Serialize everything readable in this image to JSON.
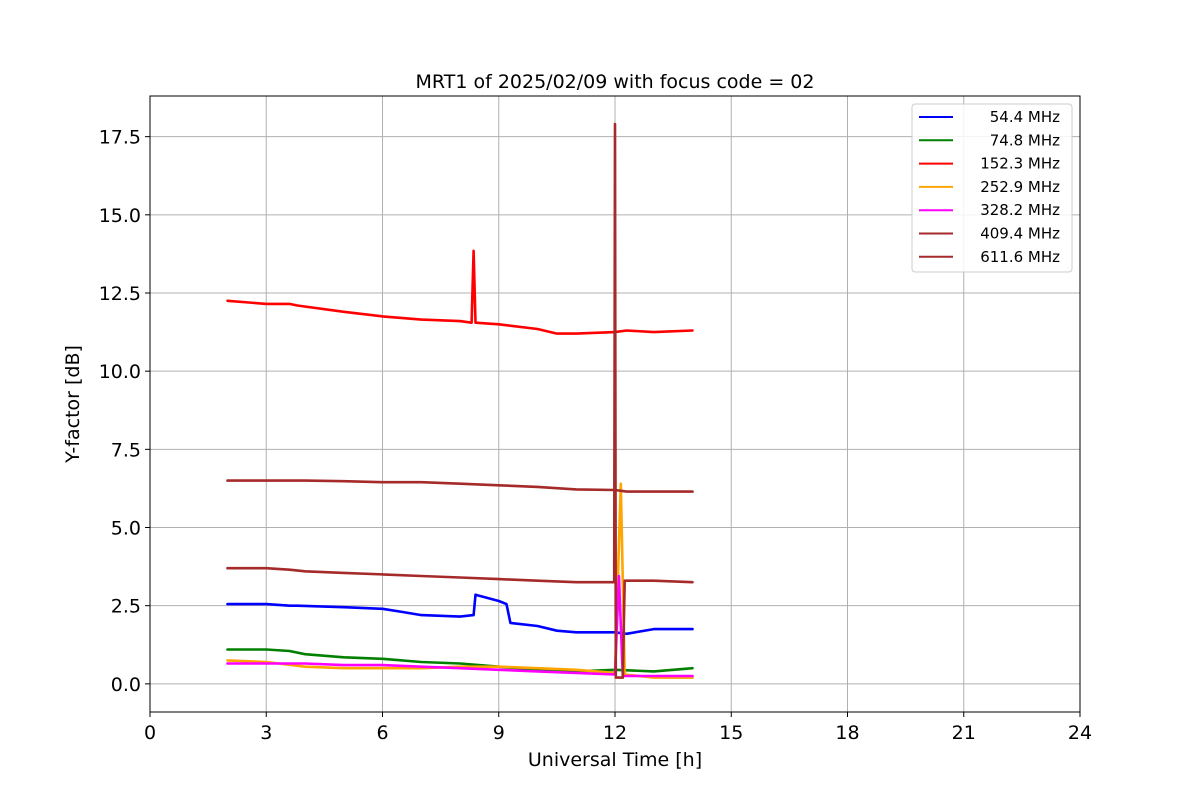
{
  "chart_data": {
    "type": "line",
    "title": "MRT1 of 2025/02/09 with focus code = 02",
    "xlabel": "Universal Time [h]",
    "ylabel": "Y-factor [dB]",
    "xlim": [
      0,
      24
    ],
    "ylim": [
      -0.9,
      18.8
    ],
    "xticks": [
      0,
      3,
      6,
      9,
      12,
      15,
      18,
      21,
      24
    ],
    "xtick_labels": [
      "0",
      "3",
      "6",
      "9",
      "12",
      "15",
      "18",
      "21",
      "24"
    ],
    "yticks": [
      0.0,
      2.5,
      5.0,
      7.5,
      10.0,
      12.5,
      15.0,
      17.5
    ],
    "ytick_labels": [
      "0.0",
      "2.5",
      "5.0",
      "7.5",
      "10.0",
      "12.5",
      "15.0",
      "17.5"
    ],
    "grid": true,
    "legend_position": "top-right",
    "series": [
      {
        "name": "54.4 MHz",
        "color": "#0000ff",
        "x": [
          2.0,
          3.0,
          3.6,
          3.8,
          5.0,
          6.0,
          6.5,
          7.0,
          8.0,
          8.35,
          8.4,
          9.0,
          9.2,
          9.3,
          10.0,
          10.5,
          11.0,
          11.5,
          12.0,
          12.3,
          13.0,
          13.5,
          14.0
        ],
        "y": [
          2.55,
          2.55,
          2.5,
          2.5,
          2.45,
          2.4,
          2.3,
          2.2,
          2.15,
          2.2,
          2.85,
          2.65,
          2.55,
          1.95,
          1.85,
          1.7,
          1.65,
          1.65,
          1.65,
          1.6,
          1.75,
          1.75,
          1.75
        ]
      },
      {
        "name": "74.8 MHz",
        "color": "#008000",
        "x": [
          2.0,
          3.0,
          3.6,
          4.0,
          5.0,
          6.0,
          7.0,
          8.0,
          9.0,
          10.0,
          11.0,
          12.0,
          13.0,
          14.0
        ],
        "y": [
          1.1,
          1.1,
          1.05,
          0.95,
          0.85,
          0.8,
          0.7,
          0.65,
          0.55,
          0.45,
          0.4,
          0.45,
          0.4,
          0.5
        ]
      },
      {
        "name": "152.3 MHz",
        "color": "#ff0000",
        "x": [
          2.0,
          3.0,
          3.6,
          3.8,
          5.0,
          6.0,
          7.0,
          8.0,
          8.3,
          8.35,
          8.4,
          9.0,
          10.0,
          10.5,
          11.0,
          12.0,
          12.3,
          13.0,
          14.0
        ],
        "y": [
          12.25,
          12.15,
          12.15,
          12.1,
          11.9,
          11.75,
          11.65,
          11.6,
          11.55,
          13.85,
          11.55,
          11.5,
          11.35,
          11.2,
          11.2,
          11.25,
          11.3,
          11.25,
          11.3
        ]
      },
      {
        "name": "252.9 MHz",
        "color": "#ffa500",
        "x": [
          2.0,
          3.0,
          4.0,
          5.0,
          6.0,
          7.0,
          8.0,
          9.0,
          10.0,
          11.0,
          12.0,
          12.15,
          12.25,
          13.0,
          14.0
        ],
        "y": [
          0.75,
          0.7,
          0.55,
          0.5,
          0.5,
          0.5,
          0.55,
          0.55,
          0.5,
          0.45,
          0.35,
          6.4,
          0.3,
          0.2,
          0.2
        ]
      },
      {
        "name": "328.2 MHz",
        "color": "#ff00ff",
        "x": [
          2.0,
          3.0,
          4.0,
          5.0,
          6.0,
          7.0,
          8.0,
          9.0,
          10.0,
          11.0,
          12.0,
          12.1,
          12.2,
          13.0,
          14.0
        ],
        "y": [
          0.65,
          0.65,
          0.65,
          0.6,
          0.6,
          0.55,
          0.5,
          0.45,
          0.4,
          0.35,
          0.3,
          3.45,
          0.25,
          0.25,
          0.25
        ]
      },
      {
        "name": "409.4 MHz",
        "color": "#a52a2a",
        "x": [
          2.0,
          3.0,
          3.6,
          4.0,
          5.0,
          6.0,
          7.0,
          8.0,
          9.0,
          10.0,
          11.0,
          12.0,
          12.3,
          13.0,
          14.0
        ],
        "y": [
          6.5,
          6.5,
          6.5,
          6.5,
          6.48,
          6.45,
          6.45,
          6.4,
          6.35,
          6.3,
          6.22,
          6.2,
          6.15,
          6.15,
          6.15
        ]
      },
      {
        "name": "611.6 MHz",
        "color": "#a52a2a",
        "x": [
          2.0,
          3.0,
          3.6,
          4.0,
          5.0,
          6.0,
          7.0,
          8.0,
          9.0,
          10.0,
          11.0,
          11.98,
          12.0,
          12.02,
          12.1,
          12.2,
          12.25,
          12.3,
          13.0,
          14.0
        ],
        "y": [
          3.7,
          3.7,
          3.65,
          3.6,
          3.55,
          3.5,
          3.45,
          3.4,
          3.35,
          3.3,
          3.25,
          3.25,
          17.9,
          0.2,
          0.2,
          0.2,
          3.3,
          3.3,
          3.3,
          3.25
        ]
      }
    ]
  }
}
